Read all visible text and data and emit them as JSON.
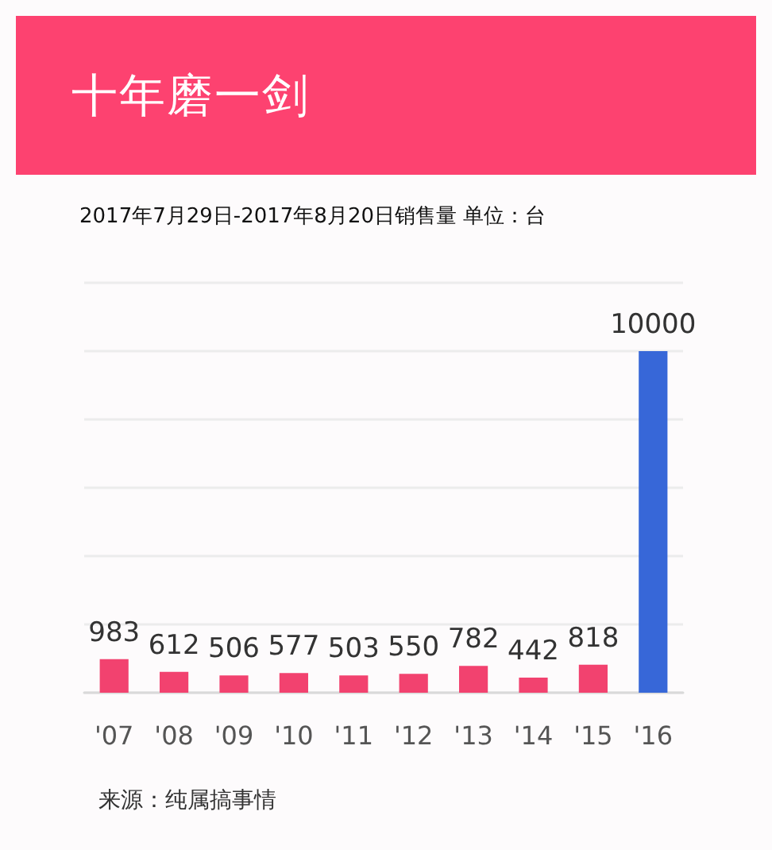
{
  "chart_data": {
    "type": "bar",
    "title": "十年磨一剑",
    "subtitle": "2017年7月29日-2017年8月20日销售量 单位：台",
    "categories": [
      "'07",
      "'08",
      "'09",
      "'10",
      "'11",
      "'12",
      "'13",
      "'14",
      "'15",
      "'16"
    ],
    "values": [
      983,
      612,
      506,
      577,
      503,
      550,
      782,
      442,
      818,
      10000
    ],
    "colors": [
      "#f2426f",
      "#f2426f",
      "#f2426f",
      "#f2426f",
      "#f2426f",
      "#f2426f",
      "#f2426f",
      "#f2426f",
      "#f2426f",
      "#3767d8"
    ],
    "ylim": [
      0,
      12000
    ],
    "yticks": [
      {
        "value": 0,
        "label": null
      },
      {
        "value": 2000,
        "label": null
      },
      {
        "value": 4000,
        "label": null
      },
      {
        "value": 6000,
        "label": null
      },
      {
        "value": 8000,
        "label": null
      },
      {
        "value": 10000,
        "label": null
      },
      {
        "value": 12000,
        "label": null
      }
    ],
    "grid": "y",
    "tick_labels": "x",
    "data_labels": true,
    "annotations": [
      "来源：纯属搞事情"
    ]
  }
}
